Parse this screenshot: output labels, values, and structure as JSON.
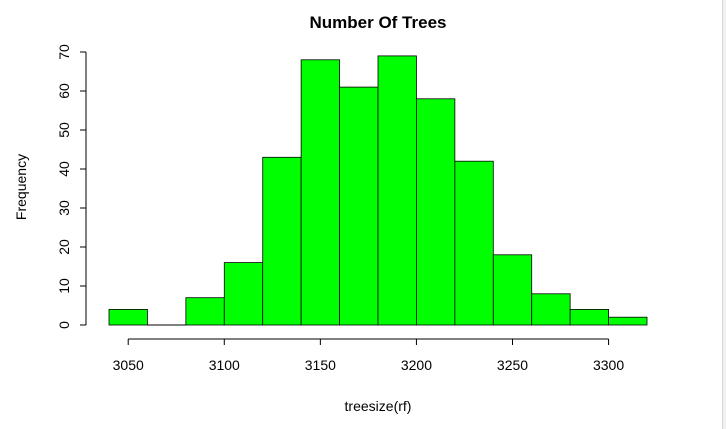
{
  "chart_data": {
    "type": "bar",
    "title": "Number Of Trees",
    "xlabel": "treesize(rf)",
    "ylabel": "Frequency",
    "bin_width": 20,
    "bins": [
      {
        "start": 3040,
        "end": 3060,
        "count": 4
      },
      {
        "start": 3060,
        "end": 3080,
        "count": 0
      },
      {
        "start": 3080,
        "end": 3100,
        "count": 7
      },
      {
        "start": 3100,
        "end": 3120,
        "count": 16
      },
      {
        "start": 3120,
        "end": 3140,
        "count": 43
      },
      {
        "start": 3140,
        "end": 3160,
        "count": 68
      },
      {
        "start": 3160,
        "end": 3180,
        "count": 61
      },
      {
        "start": 3180,
        "end": 3200,
        "count": 69
      },
      {
        "start": 3200,
        "end": 3220,
        "count": 58
      },
      {
        "start": 3220,
        "end": 3240,
        "count": 42
      },
      {
        "start": 3240,
        "end": 3260,
        "count": 18
      },
      {
        "start": 3260,
        "end": 3280,
        "count": 8
      },
      {
        "start": 3280,
        "end": 3300,
        "count": 4
      },
      {
        "start": 3300,
        "end": 3320,
        "count": 2
      }
    ],
    "xlim": [
      3040,
      3320
    ],
    "ylim": [
      0,
      70
    ],
    "xticks": [
      "3050",
      "3100",
      "3150",
      "3200",
      "3250",
      "3300"
    ],
    "yticks": [
      "0",
      "10",
      "20",
      "30",
      "40",
      "50",
      "60",
      "70"
    ],
    "grid": false,
    "colors": {
      "bar_fill": "#00ff00",
      "bar_stroke": "#000000"
    }
  }
}
